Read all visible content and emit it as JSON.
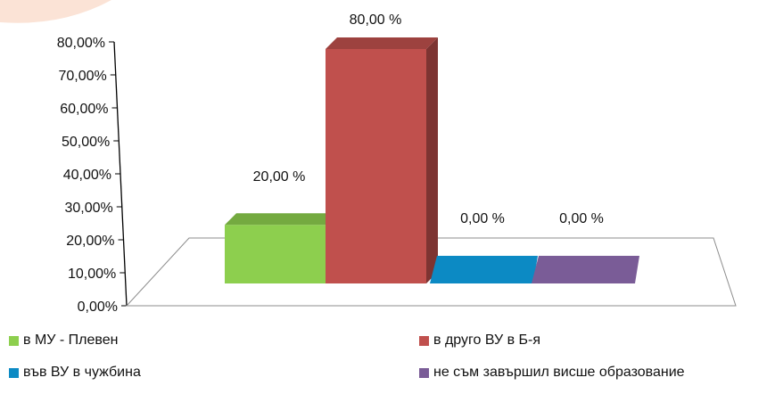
{
  "chart_data": {
    "type": "bar",
    "style": "3d-perspective",
    "categories": [
      "в МУ - Плевен",
      "в друго ВУ в Б-я",
      "във ВУ в чужбина",
      "не съм завършил висше образование"
    ],
    "values": [
      20,
      80,
      0,
      0
    ],
    "data_labels": [
      "20,00 %",
      "80,00 %",
      "0,00 %",
      "0,00 %"
    ],
    "colors": [
      "#8dcf4e",
      "#c0504d",
      "#0c8ac4",
      "#7a5c97"
    ],
    "ylim": [
      0,
      80
    ],
    "yticks": [
      "0,00%",
      "10,00%",
      "20,00%",
      "30,00%",
      "40,00%",
      "50,00%",
      "60,00%",
      "70,00%",
      "80,00%"
    ],
    "legend": {
      "placement": "bottom",
      "entries": [
        "в МУ - Плевен",
        "в друго ВУ в Б-я",
        "във ВУ в чужбина",
        "не съм завършил висше образование"
      ]
    },
    "grid": false
  }
}
